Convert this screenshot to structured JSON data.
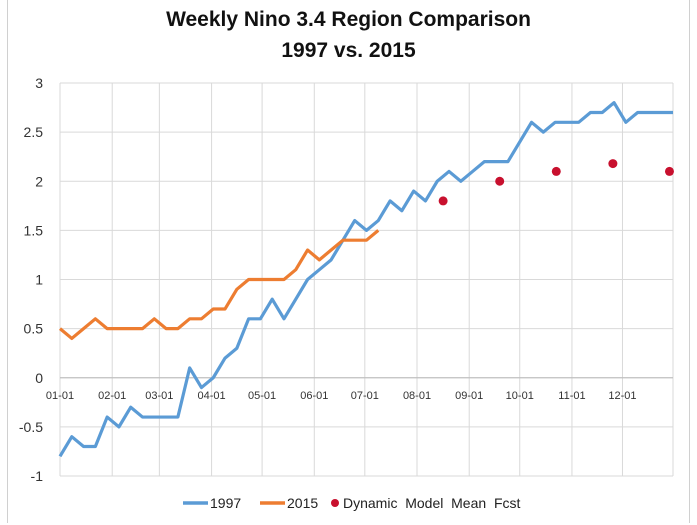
{
  "chart_data": {
    "type": "line",
    "title": "Weekly Nino 3.4 Region Comparison",
    "subtitle": "1997 vs. 2015",
    "xlabel": "",
    "ylabel": "",
    "ylim": [
      -1,
      3
    ],
    "yticks": [
      "3",
      "2.5",
      "2",
      "1.5",
      "1",
      "0.5",
      "0",
      "-0.5",
      "-1"
    ],
    "xticks": [
      "01-01",
      "02-01",
      "03-01",
      "04-01",
      "05-01",
      "06-01",
      "07-01",
      "08-01",
      "09-01",
      "10-01",
      "11-01",
      "12-01"
    ],
    "grid": true,
    "legend_position": "bottom",
    "series": [
      {
        "name": "1997",
        "color": "#5b9bd5",
        "style": "line",
        "values": [
          -0.8,
          -0.6,
          -0.7,
          -0.7,
          -0.4,
          -0.5,
          -0.3,
          -0.4,
          -0.4,
          -0.4,
          -0.4,
          0.1,
          -0.1,
          0.0,
          0.2,
          0.3,
          0.6,
          0.6,
          0.8,
          0.6,
          0.8,
          1.0,
          1.1,
          1.2,
          1.4,
          1.6,
          1.5,
          1.6,
          1.8,
          1.7,
          1.9,
          1.8,
          2.0,
          2.1,
          2.0,
          2.1,
          2.2,
          2.2,
          2.2,
          2.4,
          2.6,
          2.5,
          2.6,
          2.6,
          2.6,
          2.7,
          2.7,
          2.8,
          2.6,
          2.7,
          2.7,
          2.7,
          2.7
        ]
      },
      {
        "name": "2015",
        "color": "#ed7d31",
        "style": "line",
        "values": [
          0.5,
          0.4,
          0.5,
          0.6,
          0.5,
          0.5,
          0.5,
          0.5,
          0.6,
          0.5,
          0.5,
          0.6,
          0.6,
          0.7,
          0.7,
          0.9,
          1.0,
          1.0,
          1.0,
          1.0,
          1.1,
          1.3,
          1.2,
          1.3,
          1.4,
          1.4,
          1.4,
          1.5
        ]
      },
      {
        "name": "Dynamic  Model  Mean  Fcst",
        "color": "#c8102e",
        "style": "points",
        "points": [
          [
            32.5,
            1.8
          ],
          [
            37.3,
            2.0
          ],
          [
            42.1,
            2.1
          ],
          [
            46.9,
            2.18
          ],
          [
            51.7,
            2.1
          ]
        ]
      }
    ]
  }
}
